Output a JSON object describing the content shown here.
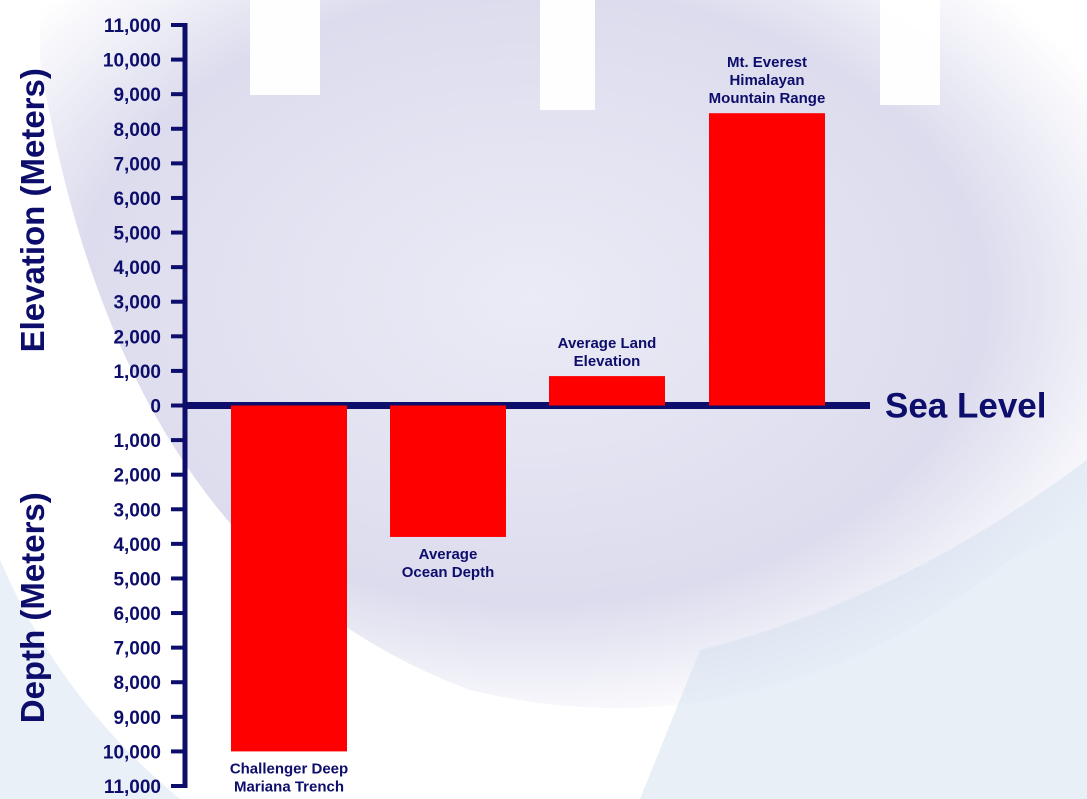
{
  "chart_data": {
    "type": "bar",
    "title": "",
    "ylabel_positive": "Elevation (Meters)",
    "ylabel_negative": "Depth (Meters)",
    "ylim": [
      -11000,
      11000
    ],
    "grid": false,
    "legend": "none",
    "bar_color": "#ff0000",
    "axis_color": "#0d0d6b",
    "reference_line": {
      "value": 0,
      "label": "Sea Level"
    },
    "categories": [
      [
        "Challenger Deep",
        "Mariana Trench"
      ],
      [
        "Average",
        "Ocean Depth"
      ],
      [
        "Average Land",
        "Elevation"
      ],
      [
        "Mt. Everest",
        "Himalayan",
        "Mountain Range"
      ]
    ],
    "values": [
      -10000,
      -3800,
      850,
      8450
    ],
    "ticks_positive": [
      "1,000",
      "2,000",
      "3,000",
      "4,000",
      "5,000",
      "6,000",
      "7,000",
      "8,000",
      "9,000",
      "10,000",
      "11,000"
    ],
    "tick_zero": "0",
    "ticks_negative": [
      "1,000",
      "2,000",
      "3,000",
      "4,000",
      "5,000",
      "6,000",
      "7,000",
      "8,000",
      "9,000",
      "10,000",
      "11,000"
    ]
  }
}
